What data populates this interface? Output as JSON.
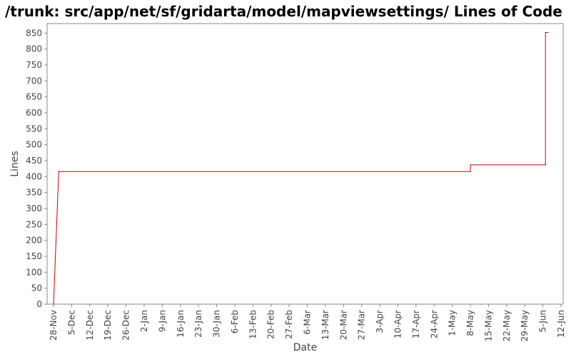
{
  "chart_data": {
    "type": "line",
    "title": "/trunk: src/app/net/sf/gridarta/model/mapviewsettings/ Lines of Code",
    "xlabel": "Date",
    "ylabel": "Lines",
    "ylim": [
      0,
      880
    ],
    "y_ticks": [
      0,
      50,
      100,
      150,
      200,
      250,
      300,
      350,
      400,
      450,
      500,
      550,
      600,
      650,
      700,
      750,
      800,
      850
    ],
    "x_ticks": [
      "28-Nov",
      "5-Dec",
      "12-Dec",
      "19-Dec",
      "26-Dec",
      "2-Jan",
      "9-Jan",
      "16-Jan",
      "23-Jan",
      "30-Jan",
      "6-Feb",
      "13-Feb",
      "20-Feb",
      "27-Feb",
      "6-Mar",
      "13-Mar",
      "20-Mar",
      "27-Mar",
      "3-Apr",
      "10-Apr",
      "17-Apr",
      "24-Apr",
      "1-May",
      "8-May",
      "15-May",
      "22-May",
      "29-May",
      "5-Jun",
      "12-Jun"
    ],
    "line_style": "step",
    "grid": false,
    "series_color": "#cc0000",
    "series": [
      {
        "x": [
          "28-Nov",
          "30-Nov",
          "8-May",
          "8-May",
          "6-Jun",
          "6-Jun",
          "6-Jun",
          "6-Jun",
          "7-Jun"
        ],
        "values": [
          0,
          416,
          416,
          437,
          437,
          440,
          440,
          852,
          852
        ]
      }
    ]
  }
}
